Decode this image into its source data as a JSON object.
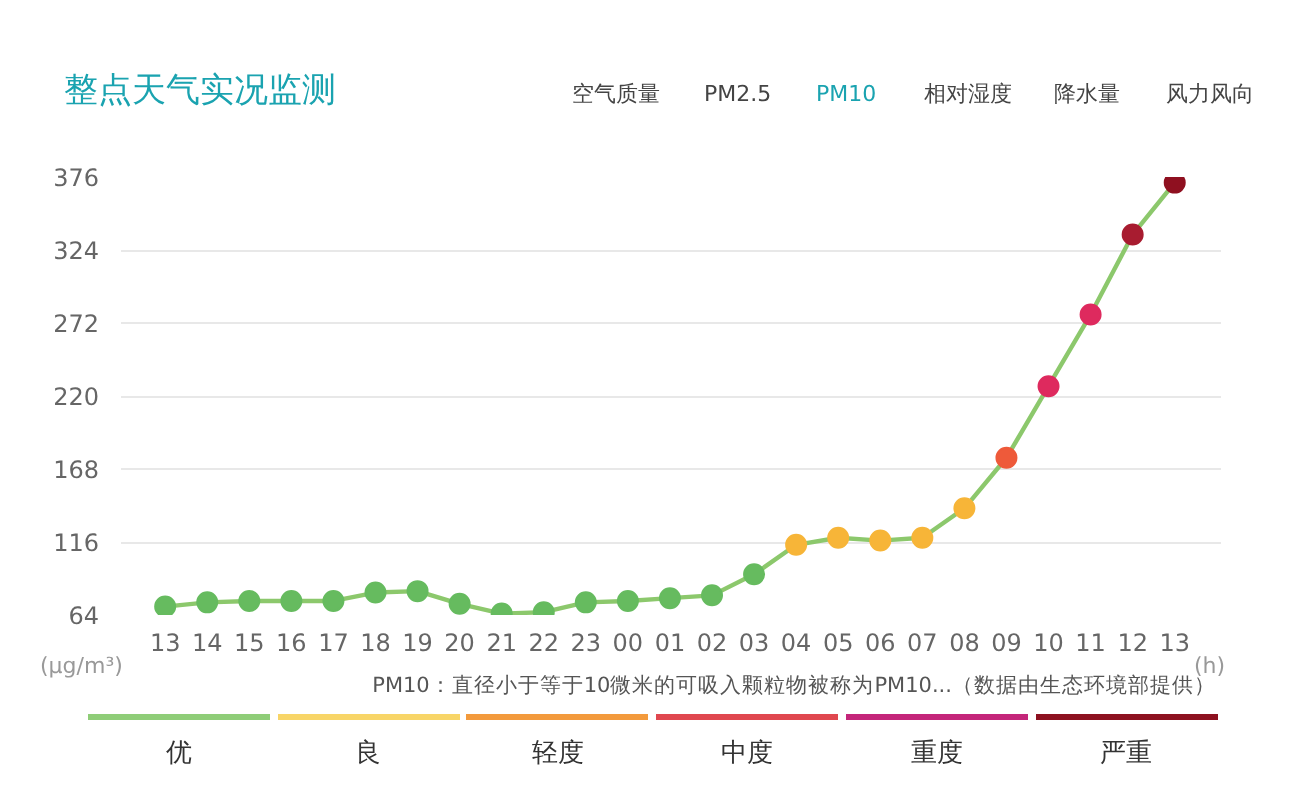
{
  "chart_data": [
    {
      "type": "line",
      "title": "整点天气实况监测",
      "xlabel": "(h)",
      "ylabel": "(μg/m³)",
      "categories": [
        "13",
        "14",
        "15",
        "16",
        "17",
        "18",
        "19",
        "20",
        "21",
        "22",
        "23",
        "00",
        "01",
        "02",
        "03",
        "04",
        "05",
        "06",
        "07",
        "08",
        "09",
        "10",
        "11",
        "12",
        "13"
      ],
      "series": [
        {
          "color": "#8cc86c",
          "values": [
            70,
            73,
            74,
            74,
            74,
            80,
            81,
            72,
            65,
            66,
            73,
            74,
            76,
            78,
            93,
            114,
            119,
            117,
            119,
            140,
            176,
            227,
            278,
            335,
            372
          ],
          "colors": [
            "#66bb5f",
            "#66bb5f",
            "#66bb5f",
            "#66bb5f",
            "#66bb5f",
            "#66bb5f",
            "#66bb5f",
            "#66bb5f",
            "#66bb5f",
            "#66bb5f",
            "#66bb5f",
            "#66bb5f",
            "#66bb5f",
            "#66bb5f",
            "#66bb5f",
            "#f7b538",
            "#f7b538",
            "#f7b538",
            "#f7b538",
            "#f7b538",
            "#ee5a3a",
            "#de2a5e",
            "#de2a5e",
            "#a81c30",
            "#8f1020"
          ]
        }
      ],
      "ylim": [
        64,
        376
      ],
      "yticks": [
        64,
        116,
        168,
        220,
        272,
        324,
        376
      ],
      "grid": "y",
      "marker": "circle",
      "line_style": "solid",
      "annotations": [
        "空气质量",
        "PM2.5",
        "PM10",
        "相对湿度",
        "降水量",
        "风力风向",
        "PM10：直径小于等于10微米的可吸入颗粒物被称为PM10...（数据由生态环境部提供）"
      ]
    },
    {
      "type": "other",
      "categories": [
        "优",
        "良",
        "轻度",
        "中度",
        "重度",
        "严重"
      ],
      "colors": [
        "#8fcd78",
        "#f8d567",
        "#f39a3c",
        "#e0474f",
        "#c4267a",
        "#8d1120"
      ]
    }
  ]
}
